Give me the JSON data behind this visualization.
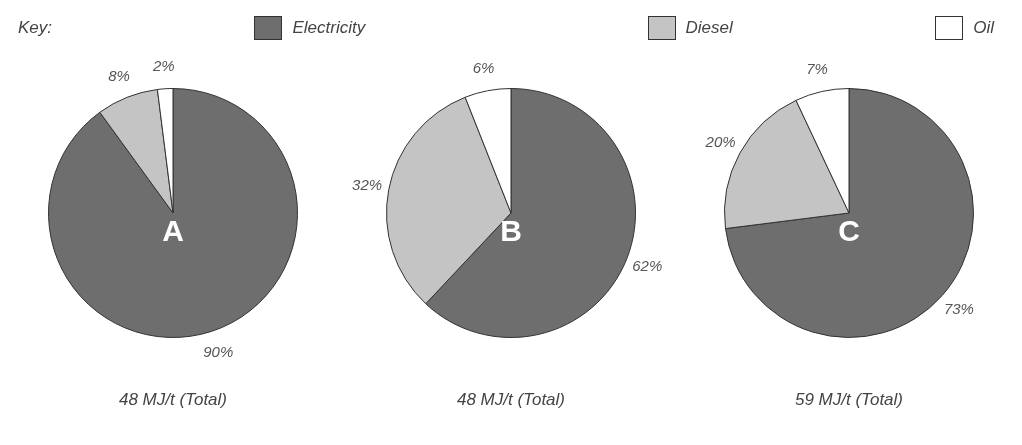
{
  "chart_data": [
    {
      "type": "pie",
      "legend": "top",
      "legend_title": "Key:",
      "categories": [
        "Electricity",
        "Diesel",
        "Oil"
      ],
      "values": [
        90,
        8,
        2
      ],
      "colors": [
        "#6e6e6e",
        "#c4c4c4",
        "#ffffff"
      ],
      "value_labels": [
        "90%",
        "8%",
        "2%"
      ],
      "annotations": [
        "A"
      ],
      "xlabel": "48 MJ/t (Total)"
    },
    {
      "type": "pie",
      "categories": [
        null,
        null,
        null
      ],
      "values": [
        62,
        32,
        6
      ],
      "colors": [
        "#6e6e6e",
        "#c4c4c4",
        "#ffffff"
      ],
      "value_labels": [
        "62%",
        "32%",
        "6%"
      ],
      "annotations": [
        "B"
      ],
      "xlabel": "48 MJ/t (Total)"
    },
    {
      "type": "pie",
      "categories": [
        null,
        null,
        null
      ],
      "values": [
        73,
        20,
        7
      ],
      "colors": [
        "#6e6e6e",
        "#c4c4c4",
        "#ffffff"
      ],
      "value_labels": [
        "73%",
        "20%",
        "7%"
      ],
      "annotations": [
        "C"
      ],
      "xlabel": "59 MJ/t (Total)"
    }
  ]
}
